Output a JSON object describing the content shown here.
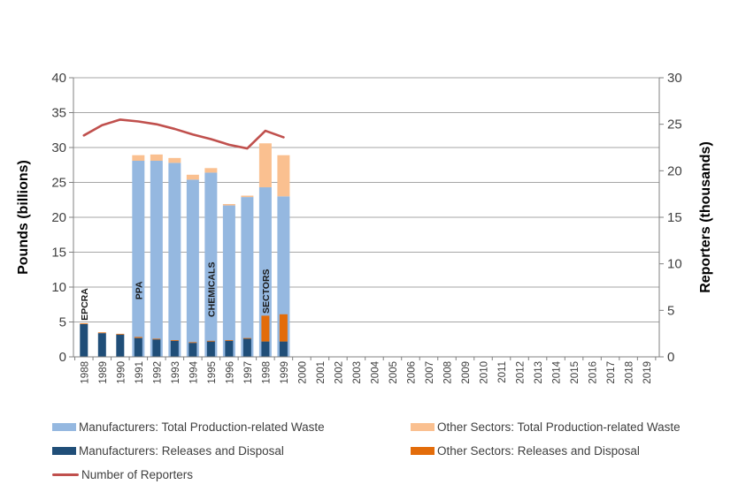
{
  "chart_data": {
    "type": "combo-bar-line",
    "categories": [
      "1988",
      "1989",
      "1990",
      "1991",
      "1992",
      "1993",
      "1994",
      "1995",
      "1996",
      "1997",
      "1998",
      "1999",
      "2000",
      "2001",
      "2002",
      "2003",
      "2004",
      "2005",
      "2006",
      "2007",
      "2008",
      "2009",
      "2010",
      "2011",
      "2012",
      "2013",
      "2014",
      "2015",
      "2016",
      "2017",
      "2018",
      "2019"
    ],
    "left_axis": {
      "label": "Pounds (billions)",
      "min": 0,
      "max": 40,
      "step": 5,
      "ticks": [
        0,
        5,
        10,
        15,
        20,
        25,
        30,
        35,
        40
      ]
    },
    "right_axis": {
      "label": "Reporters (thousands)",
      "min": 0,
      "max": 30,
      "step": 5,
      "ticks": [
        0,
        5,
        10,
        15,
        20,
        25,
        30
      ]
    },
    "grid": true,
    "legend_position": "bottom",
    "series": [
      {
        "name": "Manufacturers: Total Production-related Waste",
        "type": "bar",
        "stack": "waste",
        "color": "#95B8E0",
        "values": [
          0,
          0,
          0,
          28.1,
          28.1,
          27.8,
          25.4,
          26.4,
          21.7,
          22.9,
          24.3,
          23.0,
          0,
          0,
          0,
          0,
          0,
          0,
          0,
          0,
          0,
          0,
          0,
          0,
          0,
          0,
          0,
          0,
          0,
          0,
          0,
          0
        ]
      },
      {
        "name": "Other Sectors: Total Production-related Waste",
        "type": "bar",
        "stack": "waste",
        "color": "#FAC090",
        "values": [
          0,
          0,
          0,
          0.8,
          0.9,
          0.7,
          0.7,
          0.65,
          0.2,
          0.2,
          6.3,
          5.9,
          0,
          0,
          0,
          0,
          0,
          0,
          0,
          0,
          0,
          0,
          0,
          0,
          0,
          0,
          0,
          0,
          0,
          0,
          0,
          0
        ]
      },
      {
        "name": "Manufacturers: Releases and Disposal",
        "type": "bar",
        "stack": "releases",
        "color": "#204E78",
        "values": [
          4.7,
          3.4,
          3.2,
          2.7,
          2.5,
          2.3,
          2.0,
          2.2,
          2.3,
          2.6,
          2.2,
          2.2,
          0,
          0,
          0,
          0,
          0,
          0,
          0,
          0,
          0,
          0,
          0,
          0,
          0,
          0,
          0,
          0,
          0,
          0,
          0,
          0
        ]
      },
      {
        "name": "Other Sectors: Releases and Disposal",
        "type": "bar",
        "stack": "releases",
        "color": "#E36C0A",
        "values": [
          0.1,
          0.1,
          0.1,
          0.15,
          0.1,
          0.1,
          0.1,
          0.1,
          0.1,
          0.1,
          3.7,
          3.9,
          0,
          0,
          0,
          0,
          0,
          0,
          0,
          0,
          0,
          0,
          0,
          0,
          0,
          0,
          0,
          0,
          0,
          0,
          0,
          0
        ]
      },
      {
        "name": "Number of Reporters",
        "type": "line",
        "axis": "right",
        "color": "#C0504D",
        "values": [
          23.8,
          24.9,
          25.5,
          25.3,
          25.0,
          24.5,
          23.9,
          23.4,
          22.8,
          22.4,
          24.3,
          23.6,
          null,
          null,
          null,
          null,
          null,
          null,
          null,
          null,
          null,
          null,
          null,
          null,
          null,
          null,
          null,
          null,
          null,
          null,
          null,
          null
        ]
      }
    ],
    "annotations": [
      {
        "text": "EPCRA",
        "year": "1988",
        "y_value": 5.2
      },
      {
        "text": "PPA",
        "year": "1991",
        "y_value": 8.2
      },
      {
        "text": "CHEMICALS",
        "year": "1995",
        "y_value": 5.7
      },
      {
        "text": "SECTORS",
        "year": "1998",
        "y_value": 6.2
      }
    ]
  },
  "legend": {
    "items": [
      {
        "label": "Manufacturers: Total Production-related Waste",
        "swatch": "bar",
        "color": "#95B8E0",
        "col": 0,
        "row": 0
      },
      {
        "label": "Manufacturers: Releases and Disposal",
        "swatch": "bar",
        "color": "#204E78",
        "col": 0,
        "row": 1
      },
      {
        "label": "Number of Reporters",
        "swatch": "line",
        "color": "#C0504D",
        "col": 0,
        "row": 2
      },
      {
        "label": "Other Sectors: Total Production-related Waste",
        "swatch": "bar",
        "color": "#FAC090",
        "col": 1,
        "row": 0
      },
      {
        "label": "Other Sectors: Releases and Disposal",
        "swatch": "bar",
        "color": "#E36C0A",
        "col": 1,
        "row": 1
      }
    ]
  },
  "colors": {
    "gridline": "#A6A6A6",
    "axis_line": "#808080",
    "tick_text": "#404040",
    "annotation_text": "#1A1A1A"
  }
}
